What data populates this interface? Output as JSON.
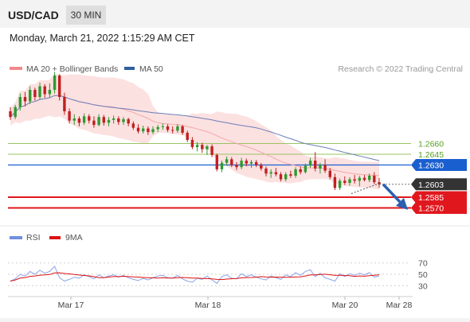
{
  "header": {
    "symbol": "USD/CAD",
    "interval": "30 MIN",
    "datetime": "Monday, March 21, 2022 1:15:29 AM CET"
  },
  "legend": {
    "items": [
      {
        "label": "MA 20 + Bollinger Bands",
        "color": "#f08a8a"
      },
      {
        "label": "MA 50",
        "color": "#2f5f9e"
      }
    ],
    "credit": "Research © 2022 Trading Central"
  },
  "rsi_legend": {
    "items": [
      {
        "label": "RSI",
        "color": "#6f8fe0"
      },
      {
        "label": "9MA",
        "color": "#dd1111"
      }
    ]
  },
  "colors": {
    "bull": "#2f9a2f",
    "bear": "#c02020",
    "band_fill": "#fbdada",
    "ma20": "#f4a8a8",
    "ma50": "#6a7fb8",
    "pivot": "#1a5fd0",
    "support": "#e0181e",
    "resistance": "#9ac463",
    "current": "#333333",
    "arrow": "#2b5fb0"
  },
  "chart_data": [
    {
      "type": "candlestick",
      "title": "USD/CAD",
      "x_ticks": [
        "Mar 17",
        "Mar 18",
        "Mar 20",
        "Mar 28"
      ],
      "ylim": [
        1.2545,
        1.2755
      ],
      "levels": [
        {
          "value": 1.266,
          "label": "1.2660",
          "kind": "resistance"
        },
        {
          "value": 1.2645,
          "label": "1.2645",
          "kind": "resistance"
        },
        {
          "value": 1.263,
          "label": "1.2630",
          "kind": "pivot"
        },
        {
          "value": 1.2603,
          "label": "1.2603",
          "kind": "current"
        },
        {
          "value": 1.2585,
          "label": "1.2585",
          "kind": "support"
        },
        {
          "value": 1.257,
          "label": "1.2570",
          "kind": "support"
        }
      ],
      "candles": [
        [
          1.2705,
          1.2711,
          1.2693,
          1.2697
        ],
        [
          1.2697,
          1.2714,
          1.2694,
          1.2711
        ],
        [
          1.2711,
          1.273,
          1.2706,
          1.2725
        ],
        [
          1.2725,
          1.2732,
          1.2712,
          1.2719
        ],
        [
          1.2719,
          1.274,
          1.2715,
          1.2735
        ],
        [
          1.2735,
          1.2738,
          1.272,
          1.2725
        ],
        [
          1.2725,
          1.2745,
          1.2722,
          1.274
        ],
        [
          1.274,
          1.2743,
          1.2724,
          1.2729
        ],
        [
          1.2729,
          1.2744,
          1.2724,
          1.2735
        ],
        [
          1.2735,
          1.276,
          1.273,
          1.2755
        ],
        [
          1.2755,
          1.2757,
          1.272,
          1.2725
        ],
        [
          1.2725,
          1.2731,
          1.27,
          1.2705
        ],
        [
          1.2705,
          1.2709,
          1.2688,
          1.2692
        ],
        [
          1.2692,
          1.2701,
          1.2686,
          1.2695
        ],
        [
          1.2695,
          1.2698,
          1.2684,
          1.2689
        ],
        [
          1.2689,
          1.2702,
          1.2686,
          1.2698
        ],
        [
          1.2698,
          1.2701,
          1.2688,
          1.2692
        ],
        [
          1.2692,
          1.2698,
          1.2682,
          1.2686
        ],
        [
          1.2686,
          1.2701,
          1.2684,
          1.2697
        ],
        [
          1.2697,
          1.27,
          1.2685,
          1.2689
        ],
        [
          1.2689,
          1.2697,
          1.2684,
          1.2693
        ],
        [
          1.2693,
          1.2699,
          1.2688,
          1.2695
        ],
        [
          1.2695,
          1.2698,
          1.2686,
          1.269
        ],
        [
          1.269,
          1.2697,
          1.2686,
          1.2694
        ],
        [
          1.2694,
          1.2696,
          1.2684,
          1.2688
        ],
        [
          1.2688,
          1.2691,
          1.2679,
          1.2682
        ],
        [
          1.2682,
          1.2687,
          1.2674,
          1.2677
        ],
        [
          1.2677,
          1.2685,
          1.2674,
          1.2681
        ],
        [
          1.2681,
          1.2684,
          1.2672,
          1.2676
        ],
        [
          1.2676,
          1.2684,
          1.2673,
          1.268
        ],
        [
          1.268,
          1.2686,
          1.2676,
          1.2683
        ],
        [
          1.2683,
          1.2688,
          1.2679,
          1.2684
        ],
        [
          1.2684,
          1.2687,
          1.2676,
          1.2679
        ],
        [
          1.2679,
          1.2684,
          1.2674,
          1.2678
        ],
        [
          1.2678,
          1.2687,
          1.2675,
          1.2684
        ],
        [
          1.2684,
          1.2686,
          1.2672,
          1.2675
        ],
        [
          1.2675,
          1.2678,
          1.2662,
          1.2665
        ],
        [
          1.2665,
          1.2669,
          1.2652,
          1.2655
        ],
        [
          1.2655,
          1.2662,
          1.2649,
          1.2658
        ],
        [
          1.2658,
          1.2661,
          1.2647,
          1.2652
        ],
        [
          1.2652,
          1.2658,
          1.2644,
          1.2656
        ],
        [
          1.2656,
          1.2659,
          1.2641,
          1.2644
        ],
        [
          1.2644,
          1.2646,
          1.2621,
          1.2624
        ],
        [
          1.2624,
          1.2636,
          1.262,
          1.2633
        ],
        [
          1.2633,
          1.2642,
          1.2629,
          1.2638
        ],
        [
          1.2638,
          1.2641,
          1.2627,
          1.263
        ],
        [
          1.263,
          1.2634,
          1.2623,
          1.2627
        ],
        [
          1.2627,
          1.264,
          1.2624,
          1.2636
        ],
        [
          1.2636,
          1.2639,
          1.2628,
          1.2632
        ],
        [
          1.2632,
          1.2637,
          1.2626,
          1.2634
        ],
        [
          1.2634,
          1.2637,
          1.2627,
          1.263
        ],
        [
          1.263,
          1.2633,
          1.2622,
          1.2625
        ],
        [
          1.2625,
          1.2628,
          1.2614,
          1.2618
        ],
        [
          1.2618,
          1.2624,
          1.2612,
          1.262
        ],
        [
          1.262,
          1.2626,
          1.2614,
          1.2617
        ],
        [
          1.2617,
          1.262,
          1.2607,
          1.261
        ],
        [
          1.261,
          1.262,
          1.2607,
          1.2617
        ],
        [
          1.2617,
          1.2622,
          1.2612,
          1.2615
        ],
        [
          1.2615,
          1.2627,
          1.2612,
          1.2624
        ],
        [
          1.2624,
          1.2628,
          1.2617,
          1.262
        ],
        [
          1.262,
          1.2632,
          1.2618,
          1.2629
        ],
        [
          1.2629,
          1.264,
          1.2626,
          1.2636
        ],
        [
          1.2636,
          1.2648,
          1.2621,
          1.2625
        ],
        [
          1.2625,
          1.2633,
          1.2618,
          1.263
        ],
        [
          1.263,
          1.2638,
          1.2619,
          1.2622
        ],
        [
          1.2622,
          1.2626,
          1.261,
          1.2613
        ],
        [
          1.2613,
          1.2618,
          1.2595,
          1.2598
        ],
        [
          1.2598,
          1.2611,
          1.2595,
          1.2608
        ],
        [
          1.2608,
          1.2614,
          1.2602,
          1.2605
        ],
        [
          1.2605,
          1.2613,
          1.2601,
          1.261
        ],
        [
          1.261,
          1.2616,
          1.2604,
          1.2608
        ],
        [
          1.2608,
          1.2615,
          1.26,
          1.2612
        ],
        [
          1.2612,
          1.2616,
          1.2607,
          1.2609
        ],
        [
          1.2609,
          1.2618,
          1.2606,
          1.2615
        ],
        [
          1.2615,
          1.262,
          1.2603,
          1.2606
        ],
        [
          1.2606,
          1.2612,
          1.2598,
          1.2603
        ]
      ]
    },
    {
      "type": "line",
      "title": "RSI",
      "series": [
        {
          "name": "RSI"
        },
        {
          "name": "9MA"
        }
      ],
      "y_ticks": [
        70,
        50,
        30
      ],
      "ylim": [
        15,
        85
      ],
      "rsi": [
        38,
        42,
        50,
        47,
        55,
        50,
        57,
        52,
        55,
        64,
        44,
        38,
        41,
        45,
        43,
        49,
        46,
        42,
        49,
        44,
        47,
        49,
        45,
        48,
        44,
        41,
        39,
        43,
        40,
        44,
        47,
        48,
        44,
        43,
        48,
        42,
        38,
        36,
        43,
        41,
        47,
        40,
        34,
        46,
        49,
        43,
        42,
        51,
        46,
        49,
        45,
        42,
        40,
        47,
        44,
        41,
        49,
        46,
        53,
        48,
        55,
        58,
        46,
        52,
        44,
        41,
        38,
        51,
        46,
        51,
        48,
        52,
        49,
        53,
        45,
        47
      ]
    }
  ]
}
